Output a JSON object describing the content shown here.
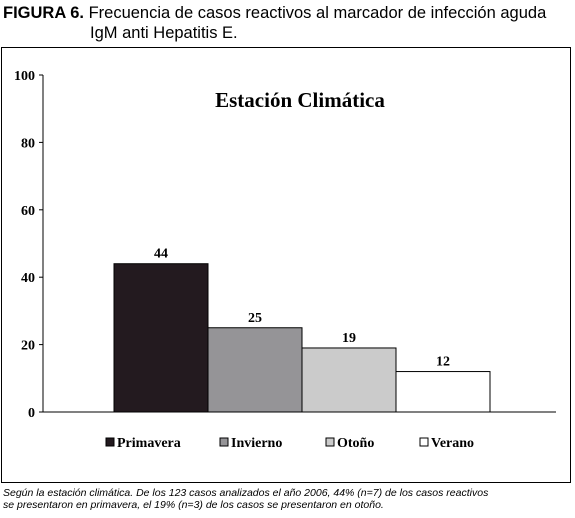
{
  "figure": {
    "label": "FIGURA 6.",
    "title_line1": "Frecuencia de casos reactivos al marcador de infección aguda",
    "title_line2": "IgM anti Hepatitis E."
  },
  "caption_line1": "Según la estación climática. De los 123 casos analizados el año 2006, 44% (n=7) de los casos reactivos",
  "caption_line2": "se presentaron en primavera, el 19% (n=3) de los casos se presentaron en otoño.",
  "chart_data": {
    "type": "bar",
    "title": "Estación Climática",
    "categories": [
      "Primavera",
      "Invierno",
      "Otoño",
      "Verano"
    ],
    "values": [
      44,
      25,
      19,
      12
    ],
    "data_labels": [
      "44",
      "25",
      "19",
      "12"
    ],
    "colors": [
      "#231a1f",
      "#959497",
      "#cbcbcb",
      "#ffffff"
    ],
    "ylim": [
      0,
      100
    ],
    "yticks": [
      "0",
      "20",
      "40",
      "60",
      "80",
      "100"
    ],
    "grid": false,
    "legend": "bottom"
  }
}
